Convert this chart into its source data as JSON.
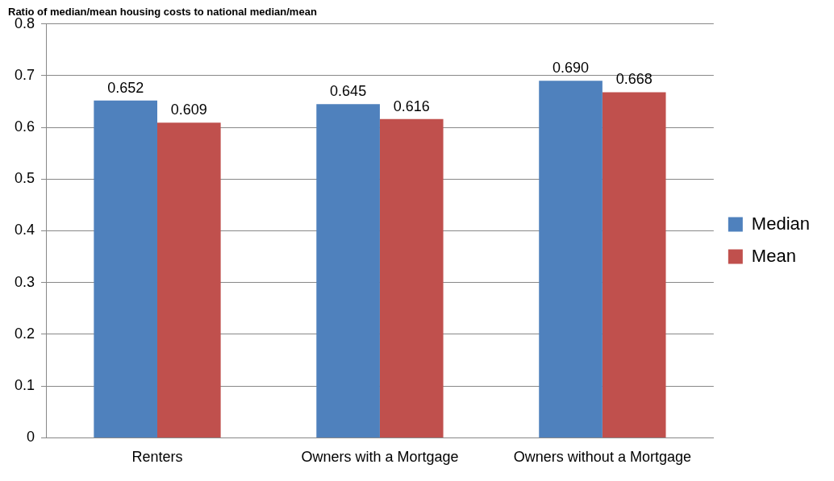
{
  "chart_data": {
    "type": "bar",
    "title": "Ratio of median/mean housing costs to national median/mean",
    "categories": [
      "Renters",
      "Owners with a Mortgage",
      "Owners without a Mortgage"
    ],
    "series": [
      {
        "name": "Median",
        "color": "#4f81bd",
        "values": [
          0.652,
          0.645,
          0.69
        ],
        "value_labels": [
          "0.652",
          "0.645",
          "0.690"
        ]
      },
      {
        "name": "Mean",
        "color": "#c0504d",
        "values": [
          0.609,
          0.616,
          0.668
        ],
        "value_labels": [
          "0.609",
          "0.616",
          "0.668"
        ]
      }
    ],
    "ylim": [
      0,
      0.8
    ],
    "yticks": [
      0,
      0.1,
      0.2,
      0.3,
      0.4,
      0.5,
      0.6,
      0.7,
      0.8
    ],
    "grid": "y",
    "legend": "right"
  }
}
